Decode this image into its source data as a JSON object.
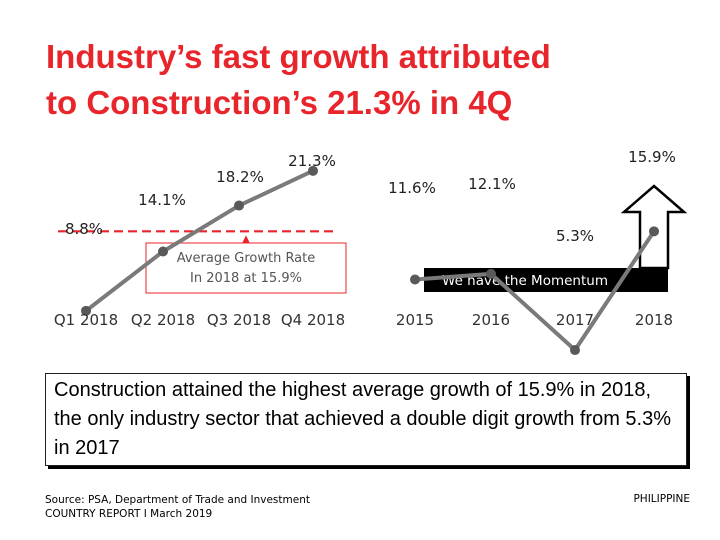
{
  "title": {
    "line1": "Industry’s fast growth attributed",
    "line2": "to Construction’s 21.3% in 4Q"
  },
  "colors": {
    "title": "#e8252b",
    "line": "#7a7a7a",
    "marker": "#595959",
    "dash": "#e8252b",
    "arrow_outline": "#000000",
    "banner_bg": "#000000",
    "banner_text": "#ffffff"
  },
  "chart_data": [
    {
      "type": "line",
      "title": "",
      "categories": [
        "Q1 2018",
        "Q2 2018",
        "Q3 2018",
        "Q4 2018"
      ],
      "values": [
        8.8,
        14.1,
        18.2,
        21.3
      ],
      "data_labels": [
        "8.8%",
        "14.1%",
        "18.2%",
        "21.3%"
      ],
      "ylim": [
        0,
        25
      ],
      "reference_line": {
        "value": 15.9,
        "style": "dashed"
      },
      "annotation": {
        "line1": "Average Growth Rate",
        "line2": "In 2018 at 15.9%"
      }
    },
    {
      "type": "line",
      "title": "",
      "categories": [
        "2015",
        "2016",
        "2017",
        "2018"
      ],
      "values": [
        11.6,
        12.1,
        5.3,
        15.9
      ],
      "data_labels": [
        "11.6%",
        "12.1%",
        "5.3%",
        "15.9%"
      ],
      "ylim": [
        0,
        25
      ],
      "annotation": {
        "text": "We have the Momentum"
      }
    }
  ],
  "summary": "Construction attained the highest average growth of 15.9% in 2018, the only industry sector  that achieved a double digit growth from 5.3% in 2017",
  "source": {
    "line1": "Source: PSA, Department of Trade and Investment",
    "line2": "COUNTRY REPORT I  March  2019"
  },
  "country": "PHILIPPINE"
}
